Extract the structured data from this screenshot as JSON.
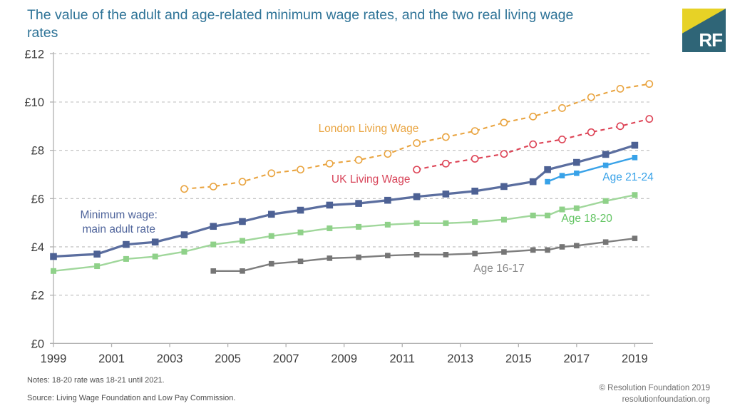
{
  "header": {
    "title": "The value of the adult and age-related minimum wage rates, and the two real living wage rates",
    "logo_text": "RF"
  },
  "colors": {
    "title": "#2e7397",
    "logo_teal": "#2f6577",
    "logo_yellow": "#e7d226",
    "gridline": "#bcbcbc",
    "axis": "#b0b0b0",
    "tick_label": "#3d3d3d",
    "main_adult_line": "#5b6e9f",
    "main_adult_marker": "#4d6194",
    "age_21_24": "#38a2e8",
    "age_18_20_line": "#a0d79b",
    "age_18_20_marker": "#8fd189",
    "age_18_20_label": "#62c462",
    "age_16_17": "#7e7e7e",
    "age_16_17_label": "#8a8a8a",
    "london_living_wage": "#e9a440",
    "uk_living_wage": "#dd4456",
    "uk_living_wage_label": "#d8455a",
    "min_wage_label": "#4f649b"
  },
  "chart_data": {
    "type": "line",
    "title": "The value of the adult and age-related minimum wage rates, and the two real living wage rates",
    "xlabel": "",
    "ylabel": "",
    "ylim": [
      0,
      12
    ],
    "xlim": [
      1999,
      2019.75
    ],
    "grid": "horizontal-dashed",
    "legend_position": "inline-labels",
    "y_axis": {
      "tick_values": [
        0,
        2,
        4,
        6,
        8,
        10,
        12
      ],
      "tick_labels": [
        "£0",
        "£2",
        "£4",
        "£6",
        "£8",
        "£10",
        "£12"
      ]
    },
    "x_axis": {
      "tick_values": [
        1999,
        2001,
        2003,
        2005,
        2007,
        2009,
        2011,
        2013,
        2015,
        2017,
        2019
      ],
      "tick_labels": [
        "1999",
        "2001",
        "2003",
        "2005",
        "2007",
        "2009",
        "2011",
        "2013",
        "2015",
        "2017",
        "2019"
      ]
    },
    "series": [
      {
        "name": "London Living Wage",
        "style": "dashed",
        "marker": "circle-open",
        "color": "#e9a440",
        "line_width": 2.1,
        "marker_size": 9.2,
        "points": [
          [
            2003.5,
            6.4
          ],
          [
            2004.5,
            6.5
          ],
          [
            2005.5,
            6.7
          ],
          [
            2006.5,
            7.05
          ],
          [
            2007.5,
            7.2
          ],
          [
            2008.5,
            7.45
          ],
          [
            2009.5,
            7.6
          ],
          [
            2010.5,
            7.85
          ],
          [
            2011.5,
            8.3
          ],
          [
            2012.5,
            8.55
          ],
          [
            2013.5,
            8.8
          ],
          [
            2014.5,
            9.15
          ],
          [
            2015.5,
            9.4
          ],
          [
            2016.5,
            9.75
          ],
          [
            2017.5,
            10.2
          ],
          [
            2018.5,
            10.55
          ],
          [
            2019.5,
            10.75
          ]
        ]
      },
      {
        "name": "UK Living Wage",
        "style": "dashed",
        "marker": "circle-open",
        "color": "#dd4456",
        "line_width": 2.1,
        "marker_size": 9.2,
        "points": [
          [
            2011.5,
            7.2
          ],
          [
            2012.5,
            7.45
          ],
          [
            2013.5,
            7.65
          ],
          [
            2014.5,
            7.85
          ],
          [
            2015.5,
            8.25
          ],
          [
            2016.5,
            8.45
          ],
          [
            2017.5,
            8.75
          ],
          [
            2018.5,
            9.0
          ],
          [
            2019.5,
            9.3
          ]
        ]
      },
      {
        "name": "Age 16-17",
        "style": "solid",
        "marker": "square",
        "color": "#7e7e7e",
        "marker_color": "#757575",
        "line_width": 2.4,
        "marker_size": 7.6,
        "points": [
          [
            2004.5,
            3.0
          ],
          [
            2005.5,
            3.0
          ],
          [
            2006.5,
            3.3
          ],
          [
            2007.5,
            3.4
          ],
          [
            2008.5,
            3.53
          ],
          [
            2009.5,
            3.57
          ],
          [
            2010.5,
            3.64
          ],
          [
            2011.5,
            3.68
          ],
          [
            2012.5,
            3.68
          ],
          [
            2013.5,
            3.72
          ],
          [
            2014.5,
            3.79
          ],
          [
            2015.5,
            3.87
          ],
          [
            2016.0,
            3.87
          ],
          [
            2016.5,
            4.0
          ],
          [
            2017.0,
            4.05
          ],
          [
            2018.0,
            4.2
          ],
          [
            2019.0,
            4.35
          ]
        ]
      },
      {
        "name": "Age 18-20",
        "style": "solid",
        "marker": "square",
        "color": "#a0d79b",
        "marker_color": "#8fd189",
        "line_width": 2.4,
        "marker_size": 8.0,
        "points": [
          [
            1999.0,
            3.0
          ],
          [
            2000.5,
            3.2
          ],
          [
            2001.5,
            3.5
          ],
          [
            2002.5,
            3.6
          ],
          [
            2003.5,
            3.8
          ],
          [
            2004.5,
            4.1
          ],
          [
            2005.5,
            4.25
          ],
          [
            2006.5,
            4.45
          ],
          [
            2007.5,
            4.6
          ],
          [
            2008.5,
            4.77
          ],
          [
            2009.5,
            4.83
          ],
          [
            2010.5,
            4.92
          ],
          [
            2011.5,
            4.98
          ],
          [
            2012.5,
            4.98
          ],
          [
            2013.5,
            5.03
          ],
          [
            2014.5,
            5.13
          ],
          [
            2015.5,
            5.3
          ],
          [
            2016.0,
            5.3
          ],
          [
            2016.5,
            5.55
          ],
          [
            2017.0,
            5.6
          ],
          [
            2018.0,
            5.9
          ],
          [
            2019.0,
            6.15
          ]
        ]
      },
      {
        "name": "Age 21-24",
        "style": "solid",
        "marker": "square",
        "color": "#38a2e8",
        "line_width": 2.4,
        "marker_size": 7.6,
        "points": [
          [
            2016.0,
            6.7
          ],
          [
            2016.5,
            6.95
          ],
          [
            2017.0,
            7.05
          ],
          [
            2018.0,
            7.38
          ],
          [
            2019.0,
            7.7
          ]
        ]
      },
      {
        "name": "Minimum wage: main adult rate",
        "style": "solid",
        "marker": "square",
        "color": "#5b6e9f",
        "marker_color": "#4d6194",
        "line_width": 3.3,
        "marker_size": 9.6,
        "points": [
          [
            1999.0,
            3.6
          ],
          [
            2000.5,
            3.7
          ],
          [
            2001.5,
            4.1
          ],
          [
            2002.5,
            4.2
          ],
          [
            2003.5,
            4.5
          ],
          [
            2004.5,
            4.85
          ],
          [
            2005.5,
            5.05
          ],
          [
            2006.5,
            5.35
          ],
          [
            2007.5,
            5.52
          ],
          [
            2008.5,
            5.73
          ],
          [
            2009.5,
            5.8
          ],
          [
            2010.5,
            5.93
          ],
          [
            2011.5,
            6.08
          ],
          [
            2012.5,
            6.19
          ],
          [
            2013.5,
            6.31
          ],
          [
            2014.5,
            6.5
          ],
          [
            2015.5,
            6.7
          ],
          [
            2016.0,
            7.2
          ],
          [
            2017.0,
            7.5
          ],
          [
            2018.0,
            7.83
          ],
          [
            2019.0,
            8.21
          ]
        ]
      }
    ],
    "annotations": [
      {
        "lines": [
          "Minimum wage:",
          "main adult rate"
        ],
        "x": 2001.25,
        "y": 5.18,
        "color": "#4f649b",
        "anchor": "middle"
      },
      {
        "lines": [
          "London Living Wage"
        ],
        "x": 2009.84,
        "y": 8.76,
        "color": "#e9a440",
        "anchor": "middle"
      },
      {
        "lines": [
          "UK Living Wage"
        ],
        "x": 2009.92,
        "y": 6.66,
        "color": "#d8455a",
        "anchor": "middle"
      },
      {
        "lines": [
          "Age 21-24"
        ],
        "x": 2018.77,
        "y": 6.75,
        "color": "#38a2e8",
        "anchor": "middle"
      },
      {
        "lines": [
          "Age 18-20"
        ],
        "x": 2017.35,
        "y": 5.03,
        "color": "#62c462",
        "anchor": "middle"
      },
      {
        "lines": [
          "Age 16-17"
        ],
        "x": 2014.33,
        "y": 2.97,
        "color": "#8a8a8a",
        "anchor": "middle"
      }
    ]
  },
  "footer": {
    "notes": "Notes: 18-20 rate was 18-21 until 2021.",
    "source": "Source: Living Wage Foundation and Low Pay Commission.",
    "copyright": "© Resolution Foundation 2019",
    "website": "resolutionfoundation.org"
  }
}
